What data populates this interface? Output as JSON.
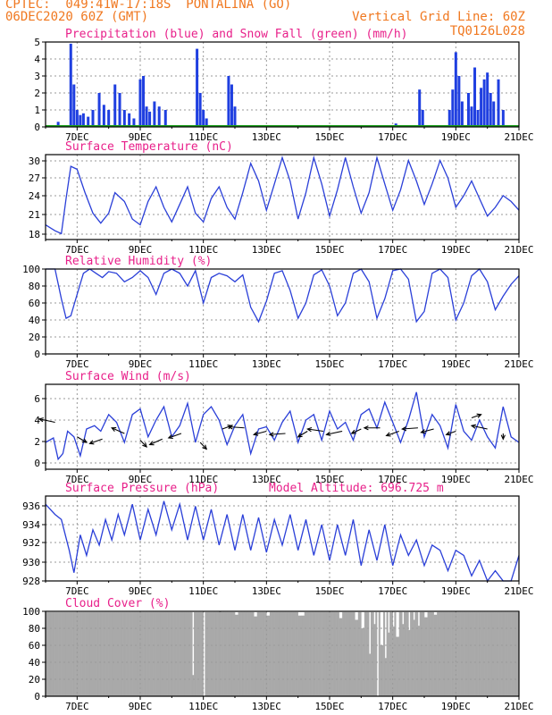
{
  "header": {
    "line1": "CPTEC:  049:41W-17:18S  PONTALINA (GO)",
    "line2": "06DEC2020 60Z (GMT)",
    "grid_note": "Vertical Grid Line: 60Z",
    "code": "TQ0126L028",
    "color": "#f07820"
  },
  "colors": {
    "title": "#e8208a",
    "line": "#2a3fd8",
    "precip": "#1f3fe0",
    "snow": "#1a9e1a",
    "cloud": "#a9a9a9",
    "grid": "#9a9a9a"
  },
  "x_axis": {
    "ticks": [
      "7DEC",
      "9DEC",
      "11DEC",
      "13DEC",
      "15DEC",
      "17DEC",
      "19DEC",
      "21DEC"
    ]
  },
  "chart_data": [
    {
      "type": "bar",
      "title": "Precipitation (blue) and Snow Fall (green) (mm/h)",
      "ylim": [
        0,
        5
      ],
      "yticks": [
        "0",
        "1",
        "2",
        "3",
        "4",
        "5"
      ],
      "series": [
        {
          "name": "Precipitation",
          "points": [
            [
              0.4,
              0.3
            ],
            [
              0.8,
              4.9
            ],
            [
              0.9,
              2.5
            ],
            [
              1.0,
              1.0
            ],
            [
              1.1,
              0.7
            ],
            [
              1.2,
              0.8
            ],
            [
              1.35,
              0.6
            ],
            [
              1.5,
              1.0
            ],
            [
              1.7,
              2.0
            ],
            [
              1.85,
              1.3
            ],
            [
              2.0,
              1.0
            ],
            [
              2.2,
              2.5
            ],
            [
              2.35,
              2.0
            ],
            [
              2.5,
              1.0
            ],
            [
              2.65,
              0.8
            ],
            [
              2.8,
              0.5
            ],
            [
              3.0,
              2.8
            ],
            [
              3.1,
              3.0
            ],
            [
              3.2,
              1.2
            ],
            [
              3.3,
              0.9
            ],
            [
              3.45,
              1.5
            ],
            [
              3.6,
              1.2
            ],
            [
              3.8,
              1.0
            ],
            [
              4.8,
              4.6
            ],
            [
              4.9,
              2.0
            ],
            [
              5.0,
              1.0
            ],
            [
              5.1,
              0.5
            ],
            [
              5.8,
              3.0
            ],
            [
              5.9,
              2.5
            ],
            [
              6.0,
              1.2
            ],
            [
              11.1,
              0.2
            ],
            [
              11.85,
              2.2
            ],
            [
              11.95,
              1.0
            ],
            [
              12.8,
              1.0
            ],
            [
              12.9,
              2.2
            ],
            [
              13.0,
              4.4
            ],
            [
              13.1,
              3.0
            ],
            [
              13.2,
              1.5
            ],
            [
              13.4,
              2.0
            ],
            [
              13.5,
              1.2
            ],
            [
              13.6,
              3.5
            ],
            [
              13.7,
              1.0
            ],
            [
              13.8,
              2.3
            ],
            [
              13.9,
              2.8
            ],
            [
              14.0,
              3.2
            ],
            [
              14.1,
              2.0
            ],
            [
              14.2,
              1.5
            ],
            [
              14.35,
              2.8
            ],
            [
              14.5,
              1.0
            ]
          ]
        },
        {
          "name": "Snow Fall",
          "value": 0
        }
      ]
    },
    {
      "type": "line",
      "title": "Surface Temperature (nC)",
      "ylim": [
        17,
        31.5
      ],
      "yticks": [
        "18",
        "21",
        "24",
        "27",
        "30"
      ],
      "series": [
        {
          "name": "Temperature",
          "x": [
            0,
            0.3,
            0.5,
            0.65,
            0.8,
            1.0,
            1.25,
            1.5,
            1.75,
            2.0,
            2.2,
            2.5,
            2.75,
            3.0,
            3.25,
            3.5,
            3.75,
            4.0,
            4.25,
            4.5,
            4.75,
            5.0,
            5.25,
            5.5,
            5.75,
            6.0,
            6.25,
            6.5,
            6.75,
            7.0,
            7.25,
            7.5,
            7.75,
            8.0,
            8.25,
            8.5,
            8.75,
            9.0,
            9.25,
            9.5,
            9.75,
            10.0,
            10.25,
            10.5,
            10.75,
            11.0,
            11.25,
            11.5,
            11.75,
            12.0,
            12.25,
            12.5,
            12.75,
            13.0,
            13.25,
            13.5,
            13.75,
            14.0,
            14.25,
            14.5,
            14.75,
            15.0
          ],
          "y": [
            19.5,
            18.5,
            18.0,
            24.0,
            29.5,
            29.0,
            25.0,
            21.5,
            19.8,
            21.5,
            25.0,
            23.5,
            20.5,
            19.5,
            23.5,
            26.0,
            22.5,
            20.0,
            23.0,
            26.0,
            21.5,
            20.0,
            24.0,
            26.0,
            22.5,
            20.5,
            25.0,
            30.0,
            27.0,
            22.0,
            26.5,
            31.0,
            27.0,
            20.5,
            25.0,
            31.0,
            26.5,
            21.0,
            25.5,
            31.0,
            26.0,
            21.5,
            25.0,
            31.0,
            26.5,
            22.0,
            25.5,
            30.5,
            27.0,
            23.0,
            26.5,
            30.5,
            27.5,
            22.5,
            24.5,
            27.0,
            24.0,
            21.0,
            22.5,
            24.5,
            23.5,
            22.0
          ]
        }
      ]
    },
    {
      "type": "line",
      "title": "Relative Humidity (%)",
      "ylim": [
        0,
        100
      ],
      "yticks": [
        "0",
        "20",
        "40",
        "60",
        "80",
        "100"
      ],
      "series": [
        {
          "name": "Humidity",
          "x": [
            0,
            0.3,
            0.5,
            0.65,
            0.8,
            1.0,
            1.2,
            1.4,
            1.6,
            1.8,
            2.0,
            2.25,
            2.5,
            2.75,
            3.0,
            3.25,
            3.5,
            3.75,
            4.0,
            4.25,
            4.5,
            4.75,
            5.0,
            5.25,
            5.5,
            5.75,
            6.0,
            6.25,
            6.5,
            6.75,
            7.0,
            7.25,
            7.5,
            7.75,
            8.0,
            8.25,
            8.5,
            8.75,
            9.0,
            9.25,
            9.5,
            9.75,
            10.0,
            10.25,
            10.5,
            10.75,
            11.0,
            11.25,
            11.5,
            11.75,
            12.0,
            12.25,
            12.5,
            12.75,
            13.0,
            13.25,
            13.5,
            13.75,
            14.0,
            14.25,
            14.5,
            14.75,
            15.0
          ],
          "y": [
            100,
            100,
            65,
            42,
            45,
            70,
            95,
            100,
            95,
            90,
            97,
            95,
            85,
            90,
            98,
            90,
            70,
            95,
            100,
            95,
            80,
            98,
            60,
            90,
            95,
            92,
            85,
            93,
            55,
            38,
            62,
            95,
            98,
            75,
            42,
            60,
            93,
            99,
            80,
            45,
            60,
            95,
            100,
            85,
            42,
            65,
            98,
            100,
            88,
            38,
            50,
            95,
            100,
            90,
            40,
            60,
            92,
            100,
            85,
            52,
            68,
            82,
            92
          ]
        }
      ]
    },
    {
      "type": "line",
      "title": "Surface Wind (m/s)",
      "ylim": [
        -0.4,
        7.2
      ],
      "yticks": [
        "0",
        "2",
        "4",
        "6"
      ],
      "series": [
        {
          "name": "Wind Speed",
          "x": [
            0,
            0.25,
            0.4,
            0.55,
            0.7,
            0.9,
            1.1,
            1.3,
            1.55,
            1.75,
            2.0,
            2.25,
            2.5,
            2.75,
            3.0,
            3.25,
            3.5,
            3.75,
            4.0,
            4.25,
            4.5,
            4.75,
            5.0,
            5.25,
            5.5,
            5.75,
            6.0,
            6.25,
            6.5,
            6.75,
            7.0,
            7.25,
            7.5,
            7.75,
            8.0,
            8.25,
            8.5,
            8.75,
            9.0,
            9.25,
            9.5,
            9.75,
            10.0,
            10.25,
            10.5,
            10.75,
            11.0,
            11.25,
            11.5,
            11.75,
            12.0,
            12.25,
            12.5,
            12.75,
            13.0,
            13.25,
            13.5,
            13.75,
            14.0,
            14.25,
            14.5,
            14.75,
            15.0
          ],
          "y": [
            2.0,
            2.4,
            0.5,
            1.0,
            3.0,
            2.5,
            0.8,
            3.2,
            3.5,
            3.0,
            4.5,
            3.8,
            2.0,
            4.5,
            5.0,
            2.5,
            4.0,
            5.2,
            2.5,
            3.5,
            5.5,
            2.0,
            4.5,
            5.2,
            4.0,
            1.8,
            3.5,
            4.5,
            1.0,
            3.2,
            3.4,
            2.2,
            3.8,
            4.8,
            2.0,
            4.0,
            4.5,
            2.2,
            4.8,
            3.2,
            3.8,
            2.2,
            4.5,
            5.0,
            3.3,
            5.6,
            3.8,
            2.0,
            4.0,
            6.5,
            2.5,
            4.5,
            3.5,
            1.5,
            5.4,
            3.0,
            2.2,
            4.0,
            2.5,
            1.5,
            5.2,
            2.5,
            2.0
          ]
        },
        {
          "name": "Wind Vectors",
          "vectors": [
            [
              0.3,
              3.8,
              -0.5,
              0.3
            ],
            [
              1.0,
              2.5,
              0.3,
              -0.5
            ],
            [
              1.8,
              2.3,
              -0.4,
              -0.4
            ],
            [
              2.5,
              2.8,
              -0.4,
              0.5
            ],
            [
              3.0,
              2.2,
              0.2,
              -0.6
            ],
            [
              3.7,
              2.3,
              -0.4,
              -0.5
            ],
            [
              4.3,
              2.8,
              -0.4,
              -0.4
            ],
            [
              4.9,
              2.0,
              0.2,
              -0.6
            ],
            [
              5.6,
              3.2,
              0.3,
              0.3
            ],
            [
              6.3,
              3.3,
              -0.5,
              0.1
            ],
            [
              7.0,
              3.0,
              -0.4,
              -0.3
            ],
            [
              7.6,
              2.8,
              -0.5,
              -0.1
            ],
            [
              8.3,
              3.0,
              -0.3,
              -0.5
            ],
            [
              8.8,
              3.0,
              -0.5,
              0.2
            ],
            [
              9.4,
              3.0,
              -0.5,
              -0.3
            ],
            [
              10.0,
              3.2,
              -0.3,
              -0.4
            ],
            [
              10.6,
              3.3,
              -0.5,
              0.0
            ],
            [
              11.2,
              3.0,
              -0.4,
              -0.4
            ],
            [
              11.8,
              3.3,
              -0.5,
              -0.1
            ],
            [
              12.3,
              3.2,
              -0.4,
              -0.3
            ],
            [
              13.0,
              3.0,
              -0.3,
              -0.3
            ],
            [
              13.5,
              4.2,
              0.3,
              0.3
            ],
            [
              14.0,
              3.2,
              -0.5,
              0.3
            ],
            [
              14.5,
              2.8,
              0.0,
              -0.5
            ]
          ]
        }
      ]
    },
    {
      "type": "line",
      "title": "Surface Pressure (hPa)",
      "annotation": "Model Altitude: 696.725 m",
      "ylim": [
        928,
        936.3
      ],
      "yticks": [
        "928",
        "930",
        "932",
        "934",
        "936"
      ],
      "series": [
        {
          "name": "Pressure",
          "x": [
            0,
            0.3,
            0.5,
            0.75,
            0.9,
            1.1,
            1.3,
            1.5,
            1.7,
            1.9,
            2.1,
            2.3,
            2.5,
            2.75,
            3.0,
            3.25,
            3.5,
            3.75,
            4.0,
            4.25,
            4.5,
            4.75,
            5.0,
            5.25,
            5.5,
            5.75,
            6.0,
            6.25,
            6.5,
            6.75,
            7.0,
            7.25,
            7.5,
            7.75,
            8.0,
            8.25,
            8.5,
            8.75,
            9.0,
            9.25,
            9.5,
            9.75,
            10.0,
            10.25,
            10.5,
            10.75,
            11.0,
            11.25,
            11.5,
            11.75,
            12.0,
            12.25,
            12.5,
            12.75,
            13.0,
            13.25,
            13.5,
            13.75,
            14.0,
            14.25,
            14.5,
            14.75,
            15.0
          ],
          "y": [
            935.5,
            934.5,
            934.0,
            931.0,
            928.8,
            932.5,
            930.5,
            933.0,
            931.5,
            934.0,
            932.0,
            934.5,
            932.5,
            935.5,
            932.0,
            935.0,
            932.5,
            935.8,
            933.0,
            935.5,
            932.0,
            935.3,
            932.0,
            935.0,
            931.5,
            934.5,
            931.0,
            934.5,
            931.0,
            934.2,
            930.8,
            934.0,
            931.5,
            934.5,
            931.0,
            934.0,
            930.5,
            933.5,
            930.0,
            933.5,
            930.5,
            934.0,
            929.5,
            933.0,
            930.0,
            933.5,
            929.5,
            932.5,
            930.5,
            932.0,
            929.5,
            931.5,
            931.0,
            929.0,
            931.0,
            930.5,
            928.5,
            930.0,
            928.0,
            929.0,
            928.0,
            928.0,
            930.5
          ]
        }
      ]
    },
    {
      "type": "bar",
      "title": "Cloud Cover (%)",
      "ylim": [
        0,
        100
      ],
      "yticks": [
        "0",
        "20",
        "40",
        "60",
        "80",
        "100"
      ],
      "series": [
        {
          "name": "Cloud Cover",
          "default": 99,
          "gaps": [
            [
              4.65,
              4.7,
              25
            ],
            [
              5.0,
              5.05,
              0
            ],
            [
              5.5,
              5.55,
              100
            ],
            [
              6.0,
              6.1,
              96
            ],
            [
              6.6,
              6.7,
              94
            ],
            [
              7.0,
              7.1,
              95
            ],
            [
              8.0,
              8.2,
              95
            ],
            [
              9.3,
              9.4,
              92
            ],
            [
              9.8,
              9.9,
              90
            ],
            [
              10.0,
              10.1,
              80
            ],
            [
              10.25,
              10.3,
              50
            ],
            [
              10.4,
              10.45,
              85
            ],
            [
              10.5,
              10.55,
              0
            ],
            [
              10.6,
              10.7,
              60
            ],
            [
              10.75,
              10.8,
              45
            ],
            [
              10.85,
              10.9,
              75
            ],
            [
              11.0,
              11.05,
              82
            ],
            [
              11.1,
              11.2,
              70
            ],
            [
              11.3,
              11.35,
              85
            ],
            [
              11.5,
              11.55,
              78
            ],
            [
              11.65,
              11.7,
              90
            ],
            [
              11.8,
              11.85,
              83
            ],
            [
              12.0,
              12.1,
              93
            ],
            [
              12.3,
              12.4,
              96
            ]
          ]
        }
      ]
    }
  ]
}
